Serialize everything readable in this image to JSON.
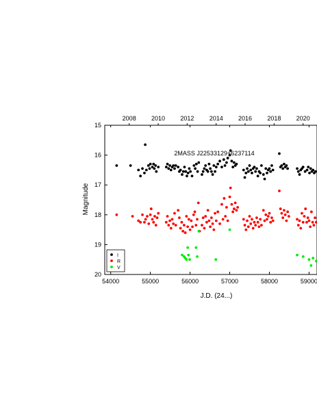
{
  "chart_data": {
    "type": "scatter",
    "title": "2MASS J22533129+6237114",
    "xlabel": "J.D. (24...)",
    "ylabel": "Magnitude",
    "xlim": [
      53850,
      59200
    ],
    "ylim": [
      15,
      20
    ],
    "y_inverted": true,
    "x_ticks": [
      54000,
      55000,
      56000,
      57000,
      58000,
      59000
    ],
    "y_ticks": [
      15,
      16,
      17,
      18,
      19,
      20
    ],
    "top_axis_ticks": [
      {
        "label": "2008",
        "jd": 54466
      },
      {
        "label": "2010",
        "jd": 55197
      },
      {
        "label": "2012",
        "jd": 55927
      },
      {
        "label": "2014",
        "jd": 56658
      },
      {
        "label": "2016",
        "jd": 57388
      },
      {
        "label": "2018",
        "jd": 58119
      },
      {
        "label": "2020",
        "jd": 58849
      }
    ],
    "grid": false,
    "legend_position": "bottom-left",
    "series": [
      {
        "name": "I",
        "color": "#000000",
        "points": [
          [
            54150,
            16.35
          ],
          [
            54500,
            16.35
          ],
          [
            54700,
            16.5
          ],
          [
            54750,
            16.7
          ],
          [
            54800,
            16.45
          ],
          [
            54850,
            16.6
          ],
          [
            54870,
            15.65
          ],
          [
            54900,
            16.5
          ],
          [
            54950,
            16.35
          ],
          [
            54980,
            16.45
          ],
          [
            55000,
            16.3
          ],
          [
            55050,
            16.4
          ],
          [
            55080,
            16.3
          ],
          [
            55100,
            16.45
          ],
          [
            55130,
            16.35
          ],
          [
            55150,
            16.55
          ],
          [
            55200,
            16.4
          ],
          [
            55400,
            16.4
          ],
          [
            55430,
            16.3
          ],
          [
            55460,
            16.45
          ],
          [
            55490,
            16.35
          ],
          [
            55520,
            16.5
          ],
          [
            55550,
            16.4
          ],
          [
            55580,
            16.35
          ],
          [
            55610,
            16.45
          ],
          [
            55640,
            16.35
          ],
          [
            55700,
            16.4
          ],
          [
            55730,
            16.55
          ],
          [
            55760,
            16.5
          ],
          [
            55800,
            16.65
          ],
          [
            55830,
            16.55
          ],
          [
            55860,
            16.4
          ],
          [
            55890,
            16.55
          ],
          [
            55920,
            16.7
          ],
          [
            55950,
            16.6
          ],
          [
            55980,
            16.45
          ],
          [
            56010,
            16.55
          ],
          [
            56050,
            16.7
          ],
          [
            56100,
            16.35
          ],
          [
            56130,
            16.45
          ],
          [
            56160,
            16.3
          ],
          [
            56190,
            16.55
          ],
          [
            56220,
            16.25
          ],
          [
            56300,
            16.65
          ],
          [
            56330,
            16.55
          ],
          [
            56360,
            16.45
          ],
          [
            56390,
            16.35
          ],
          [
            56420,
            16.5
          ],
          [
            56450,
            16.55
          ],
          [
            56480,
            16.3
          ],
          [
            56510,
            16.45
          ],
          [
            56540,
            16.55
          ],
          [
            56570,
            16.65
          ],
          [
            56600,
            16.35
          ],
          [
            56630,
            16.55
          ],
          [
            56660,
            16.4
          ],
          [
            56700,
            16.3
          ],
          [
            56750,
            16.2
          ],
          [
            56800,
            16.4
          ],
          [
            56850,
            16.15
          ],
          [
            56880,
            16.35
          ],
          [
            56920,
            16.25
          ],
          [
            56950,
            16.1
          ],
          [
            57000,
            16.0
          ],
          [
            57020,
            15.85
          ],
          [
            57050,
            16.2
          ],
          [
            57080,
            16.4
          ],
          [
            57110,
            16.25
          ],
          [
            57140,
            16.35
          ],
          [
            57170,
            16.3
          ],
          [
            57350,
            16.5
          ],
          [
            57380,
            16.75
          ],
          [
            57410,
            16.6
          ],
          [
            57440,
            16.45
          ],
          [
            57470,
            16.55
          ],
          [
            57500,
            16.35
          ],
          [
            57530,
            16.5
          ],
          [
            57560,
            16.6
          ],
          [
            57590,
            16.45
          ],
          [
            57620,
            16.4
          ],
          [
            57650,
            16.55
          ],
          [
            57680,
            16.45
          ],
          [
            57710,
            16.7
          ],
          [
            57740,
            16.55
          ],
          [
            57770,
            16.6
          ],
          [
            57800,
            16.35
          ],
          [
            57850,
            16.65
          ],
          [
            57880,
            16.8
          ],
          [
            57910,
            16.45
          ],
          [
            57940,
            16.6
          ],
          [
            57970,
            16.5
          ],
          [
            58000,
            16.45
          ],
          [
            58030,
            16.55
          ],
          [
            58060,
            16.35
          ],
          [
            58090,
            16.5
          ],
          [
            58250,
            15.95
          ],
          [
            58280,
            16.4
          ],
          [
            58310,
            16.35
          ],
          [
            58340,
            16.45
          ],
          [
            58370,
            16.3
          ],
          [
            58400,
            16.4
          ],
          [
            58430,
            16.35
          ],
          [
            58460,
            16.45
          ],
          [
            58700,
            16.45
          ],
          [
            58730,
            16.55
          ],
          [
            58760,
            16.65
          ],
          [
            58790,
            16.5
          ],
          [
            58820,
            16.45
          ],
          [
            58850,
            16.4
          ],
          [
            58900,
            16.55
          ],
          [
            58950,
            16.5
          ],
          [
            58980,
            16.4
          ],
          [
            59010,
            16.6
          ],
          [
            59040,
            16.45
          ],
          [
            59070,
            16.55
          ],
          [
            59100,
            16.5
          ],
          [
            59130,
            16.6
          ],
          [
            59160,
            16.55
          ],
          [
            59185,
            16.65
          ]
        ]
      },
      {
        "name": "R",
        "color": "#ff0000",
        "points": [
          [
            54150,
            18.0
          ],
          [
            54550,
            18.05
          ],
          [
            54700,
            18.2
          ],
          [
            54750,
            18.25
          ],
          [
            54800,
            18.0
          ],
          [
            54850,
            18.25
          ],
          [
            54880,
            18.15
          ],
          [
            54920,
            18.05
          ],
          [
            54960,
            18.3
          ],
          [
            55000,
            18.0
          ],
          [
            55020,
            17.8
          ],
          [
            55050,
            18.15
          ],
          [
            55080,
            18.25
          ],
          [
            55110,
            18.05
          ],
          [
            55140,
            18.35
          ],
          [
            55170,
            18.1
          ],
          [
            55200,
            17.95
          ],
          [
            55400,
            18.25
          ],
          [
            55430,
            18.05
          ],
          [
            55460,
            18.35
          ],
          [
            55490,
            18.2
          ],
          [
            55520,
            18.45
          ],
          [
            55550,
            18.15
          ],
          [
            55580,
            18.3
          ],
          [
            55610,
            17.95
          ],
          [
            55640,
            18.35
          ],
          [
            55700,
            17.85
          ],
          [
            55730,
            18.1
          ],
          [
            55760,
            18.45
          ],
          [
            55790,
            18.25
          ],
          [
            55820,
            18.55
          ],
          [
            55850,
            18.35
          ],
          [
            55880,
            18.6
          ],
          [
            55910,
            18.05
          ],
          [
            55940,
            18.4
          ],
          [
            55970,
            18.15
          ],
          [
            56000,
            18.5
          ],
          [
            56030,
            18.2
          ],
          [
            56060,
            18.4
          ],
          [
            56090,
            18.0
          ],
          [
            56120,
            17.9
          ],
          [
            56150,
            18.35
          ],
          [
            56180,
            18.15
          ],
          [
            56210,
            17.6
          ],
          [
            56240,
            18.55
          ],
          [
            56300,
            18.35
          ],
          [
            56330,
            18.1
          ],
          [
            56360,
            18.45
          ],
          [
            56390,
            18.05
          ],
          [
            56420,
            18.25
          ],
          [
            56450,
            17.85
          ],
          [
            56480,
            18.2
          ],
          [
            56510,
            18.4
          ],
          [
            56540,
            18.1
          ],
          [
            56570,
            18.3
          ],
          [
            56600,
            18.5
          ],
          [
            56630,
            17.95
          ],
          [
            56660,
            18.2
          ],
          [
            56700,
            17.9
          ],
          [
            56750,
            18.3
          ],
          [
            56800,
            17.65
          ],
          [
            56830,
            18.15
          ],
          [
            56860,
            17.45
          ],
          [
            56890,
            18.05
          ],
          [
            56920,
            17.75
          ],
          [
            56950,
            18.2
          ],
          [
            57000,
            17.4
          ],
          [
            57020,
            17.1
          ],
          [
            57050,
            17.65
          ],
          [
            57080,
            17.9
          ],
          [
            57110,
            17.8
          ],
          [
            57140,
            17.6
          ],
          [
            57170,
            17.85
          ],
          [
            57200,
            17.75
          ],
          [
            57350,
            18.15
          ],
          [
            57380,
            18.35
          ],
          [
            57410,
            18.5
          ],
          [
            57440,
            18.2
          ],
          [
            57470,
            18.4
          ],
          [
            57500,
            18.05
          ],
          [
            57530,
            18.3
          ],
          [
            57560,
            18.15
          ],
          [
            57590,
            18.45
          ],
          [
            57620,
            18.25
          ],
          [
            57650,
            18.35
          ],
          [
            57680,
            18.1
          ],
          [
            57710,
            18.25
          ],
          [
            57740,
            18.4
          ],
          [
            57770,
            18.15
          ],
          [
            57800,
            18.35
          ],
          [
            57850,
            17.85
          ],
          [
            57880,
            18.2
          ],
          [
            57910,
            18.0
          ],
          [
            57940,
            18.15
          ],
          [
            57970,
            18.05
          ],
          [
            58000,
            17.95
          ],
          [
            58030,
            18.25
          ],
          [
            58060,
            18.1
          ],
          [
            58090,
            18.2
          ],
          [
            58250,
            17.2
          ],
          [
            58280,
            17.8
          ],
          [
            58310,
            17.95
          ],
          [
            58340,
            18.1
          ],
          [
            58370,
            17.85
          ],
          [
            58400,
            18.0
          ],
          [
            58430,
            18.2
          ],
          [
            58460,
            17.9
          ],
          [
            58490,
            18.05
          ],
          [
            58700,
            18.15
          ],
          [
            58730,
            18.35
          ],
          [
            58760,
            18.2
          ],
          [
            58790,
            18.45
          ],
          [
            58820,
            17.95
          ],
          [
            58850,
            18.25
          ],
          [
            58880,
            18.05
          ],
          [
            58910,
            17.8
          ],
          [
            58940,
            18.25
          ],
          [
            58970,
            18.1
          ],
          [
            59000,
            18.2
          ],
          [
            59030,
            18.4
          ],
          [
            59060,
            17.9
          ],
          [
            59090,
            18.25
          ],
          [
            59120,
            18.35
          ],
          [
            59150,
            18.1
          ],
          [
            59180,
            18.25
          ]
        ]
      },
      {
        "name": "V",
        "color": "#00ee00",
        "points": [
          [
            55800,
            19.35
          ],
          [
            55850,
            19.4
          ],
          [
            55880,
            19.45
          ],
          [
            55910,
            19.5
          ],
          [
            55940,
            19.1
          ],
          [
            55960,
            19.35
          ],
          [
            55990,
            19.5
          ],
          [
            56150,
            19.1
          ],
          [
            56180,
            19.4
          ],
          [
            56220,
            18.55
          ],
          [
            56650,
            19.5
          ],
          [
            57000,
            18.5
          ],
          [
            58700,
            19.35
          ],
          [
            58850,
            19.4
          ],
          [
            59000,
            19.5
          ],
          [
            59050,
            19.7
          ],
          [
            59100,
            19.45
          ],
          [
            59180,
            19.55
          ]
        ]
      }
    ]
  }
}
